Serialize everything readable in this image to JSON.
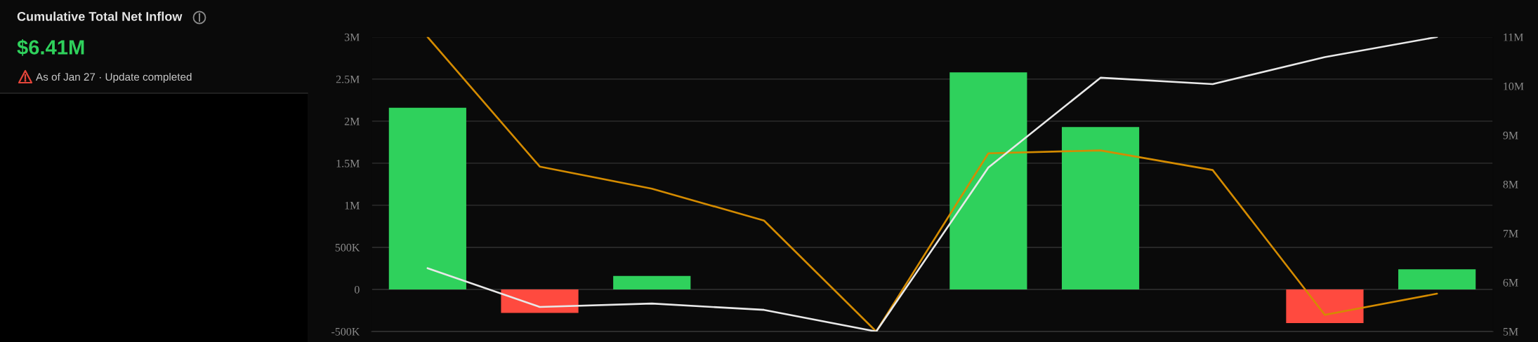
{
  "chart_data": {
    "type": "bar",
    "title": "Cumulative Total Net Inflow",
    "subtitle": "$6.41M",
    "annotations": [
      "As of Jan 27 · Update completed"
    ],
    "categories": [
      null,
      null,
      null,
      null,
      null,
      null,
      null,
      null,
      null,
      null
    ],
    "series": [
      {
        "colors": [
          "#2fd15c",
          "#ff4a3f",
          "#2fd15c",
          "#2fd15c",
          "#2fd15c",
          "#2fd15c",
          "#2fd15c",
          "#2fd15c",
          "#ff4a3f",
          "#2fd15c"
        ],
        "values": [
          2160000,
          -280000,
          160000,
          null,
          null,
          2580000,
          1930000,
          null,
          -400000,
          240000
        ]
      },
      {
        "type": "line",
        "axis": "y2",
        "color": "#d48b00",
        "values": [
          11000000,
          8360000,
          7910000,
          7260000,
          5000000,
          8630000,
          8690000,
          8290000,
          5340000,
          5770000
        ]
      },
      {
        "type": "line",
        "axis": "y2",
        "color": "#e8e8e8",
        "values": [
          6290000,
          5500000,
          5570000,
          5440000,
          5000000,
          8340000,
          10170000,
          10040000,
          10590000,
          11000000
        ]
      }
    ],
    "ylim": [
      -500000,
      3000000
    ],
    "yticks": [
      {
        "value": -500000,
        "label": "-500K"
      },
      0,
      {
        "value": 500000,
        "label": "500K"
      },
      {
        "value": 1000000,
        "label": "1M"
      },
      {
        "value": 1500000,
        "label": "1.5M"
      },
      {
        "value": 2000000,
        "label": "2M"
      },
      {
        "value": 2500000,
        "label": "2.5M"
      },
      {
        "value": 3000000,
        "label": "3M"
      }
    ],
    "y2lim": [
      5000000,
      11000000
    ],
    "y2ticks": [
      {
        "value": 5000000,
        "label": "5M"
      },
      {
        "value": 6000000,
        "label": "6M"
      },
      {
        "value": 7000000,
        "label": "7M"
      },
      {
        "value": 8000000,
        "label": "8M"
      },
      {
        "value": 9000000,
        "label": "9M"
      },
      {
        "value": 10000000,
        "label": "10M"
      },
      {
        "value": 11000000,
        "label": "11M"
      }
    ],
    "grid": "y"
  }
}
